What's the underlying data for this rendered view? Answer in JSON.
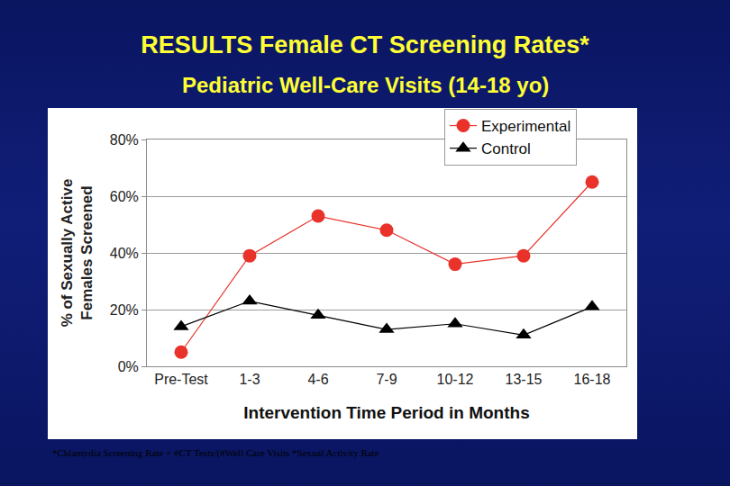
{
  "chart_data": {
    "type": "line",
    "title": "RESULTS Female CT Screening Rates*",
    "subtitle": "Pediatric Well-Care Visits (14-18 yo)",
    "x_label": "Intervention Time Period in Months",
    "y_label": "% of Sexually Active\nFemales Screened",
    "footnote": "*Chlamydia Screening Rate = #CT Tests/(#Well Care Visits *Sexual Activity Rate",
    "categories": [
      "Pre-Test",
      "1-3",
      "4-6",
      "7-9",
      "10-12",
      "13-15",
      "16-18"
    ],
    "series": [
      {
        "name": "Experimental",
        "color": "#e8322a",
        "marker": "circle",
        "values": [
          5,
          39,
          53,
          48,
          36,
          39,
          65
        ]
      },
      {
        "name": "Control",
        "color": "#000000",
        "marker": "triangle-up",
        "values": [
          14,
          23,
          18,
          13,
          15,
          11,
          21
        ]
      }
    ],
    "ylim": [
      0,
      80
    ],
    "yticks": [
      {
        "value": 0,
        "label": "0%"
      },
      {
        "value": 20,
        "label": "20%"
      },
      {
        "value": 40,
        "label": "40%"
      },
      {
        "value": 60,
        "label": "60%"
      },
      {
        "value": 80,
        "label": "80%"
      }
    ],
    "grid": true,
    "legend": "top right"
  }
}
